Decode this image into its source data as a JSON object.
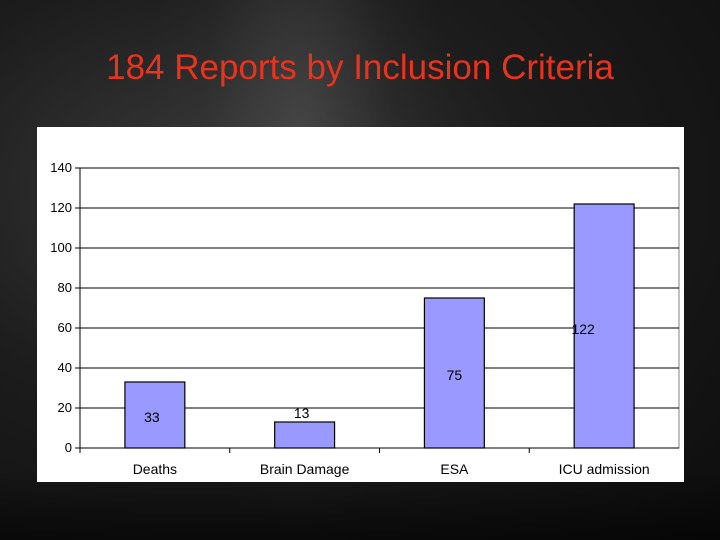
{
  "slide": {
    "title": "184 Reports by  Inclusion Criteria"
  },
  "colors": {
    "bar": "#9999ff",
    "title": "#e8331d",
    "plot_bg": "#ffffff",
    "grid": "#000000"
  },
  "chart_data": {
    "type": "bar",
    "categories": [
      "Deaths",
      "Brain Damage",
      "ESA",
      "ICU admission"
    ],
    "values": [
      33,
      13,
      75,
      122
    ],
    "data_labels": [
      "33",
      "13",
      "75",
      "122"
    ],
    "ylim": [
      0,
      140
    ],
    "yticks": [
      0,
      20,
      40,
      60,
      80,
      100,
      120,
      140
    ],
    "ytick_labels": [
      "0",
      "20",
      "40",
      "60",
      "80",
      "100",
      "120",
      "140"
    ],
    "grid": true,
    "legend": false
  }
}
